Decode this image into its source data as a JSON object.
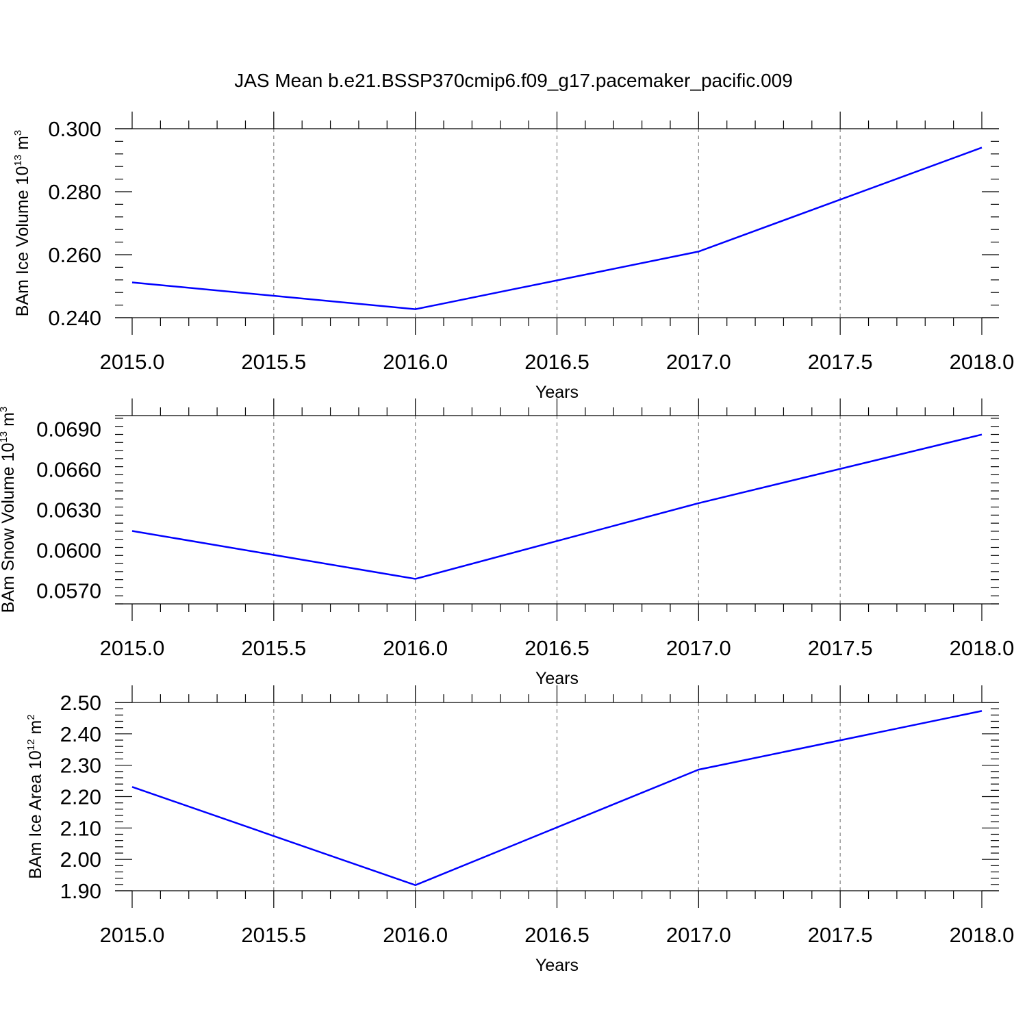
{
  "title": "JAS Mean b.e21.BSSP370cmip6.f09_g17.pacemaker_pacific.009",
  "colors": {
    "line": "#0000ff",
    "axis": "#000000",
    "grid": "#808080"
  },
  "chart_data": [
    {
      "type": "line",
      "xlabel": "Years",
      "ylabel": {
        "text": "BAm Ice Volume 10",
        "exp": "13",
        "unit": " m",
        "unit_exp": "3"
      },
      "x": [
        2015,
        2016,
        2017,
        2018
      ],
      "values": [
        0.2512,
        0.2427,
        0.261,
        0.294
      ],
      "xlim": [
        2015,
        2018
      ],
      "ylim": [
        0.24,
        0.3
      ],
      "xticks": [
        "2015.0",
        "2015.5",
        "2016.0",
        "2016.5",
        "2017.0",
        "2017.5",
        "2018.0"
      ],
      "yticks": [
        "0.240",
        "0.260",
        "0.280",
        "0.300"
      ],
      "ytick_values": [
        0.24,
        0.26,
        0.28,
        0.3
      ],
      "grid": "vertical dashed at major x ticks"
    },
    {
      "type": "line",
      "xlabel": "Years",
      "ylabel": {
        "text": "BAm Snow Volume 10",
        "exp": "13",
        "unit": " m",
        "unit_exp": "3"
      },
      "x": [
        2015,
        2016,
        2017,
        2018
      ],
      "values": [
        0.06142,
        0.05786,
        0.06349,
        0.06859
      ],
      "xlim": [
        2015,
        2018
      ],
      "ylim": [
        0.056,
        0.07
      ],
      "xticks": [
        "2015.0",
        "2015.5",
        "2016.0",
        "2016.5",
        "2017.0",
        "2017.5",
        "2018.0"
      ],
      "yticks": [
        "0.0570",
        "0.0600",
        "0.0630",
        "0.0660",
        "0.0690"
      ],
      "ytick_values": [
        0.057,
        0.06,
        0.063,
        0.066,
        0.069
      ],
      "grid": "vertical dashed at major x ticks"
    },
    {
      "type": "line",
      "xlabel": "Years",
      "ylabel": {
        "text": "BAm Ice Area 10",
        "exp": "12",
        "unit": " m",
        "unit_exp": "2"
      },
      "x": [
        2015,
        2016,
        2017,
        2018
      ],
      "values": [
        2.231,
        1.918,
        2.286,
        2.473
      ],
      "xlim": [
        2015,
        2018
      ],
      "ylim": [
        1.9,
        2.5
      ],
      "xticks": [
        "2015.0",
        "2015.5",
        "2016.0",
        "2016.5",
        "2017.0",
        "2017.5",
        "2018.0"
      ],
      "yticks": [
        "1.90",
        "2.00",
        "2.10",
        "2.20",
        "2.30",
        "2.40",
        "2.50"
      ],
      "ytick_values": [
        1.9,
        2.0,
        2.1,
        2.2,
        2.3,
        2.4,
        2.5
      ],
      "grid": "vertical dashed at major x ticks"
    }
  ]
}
